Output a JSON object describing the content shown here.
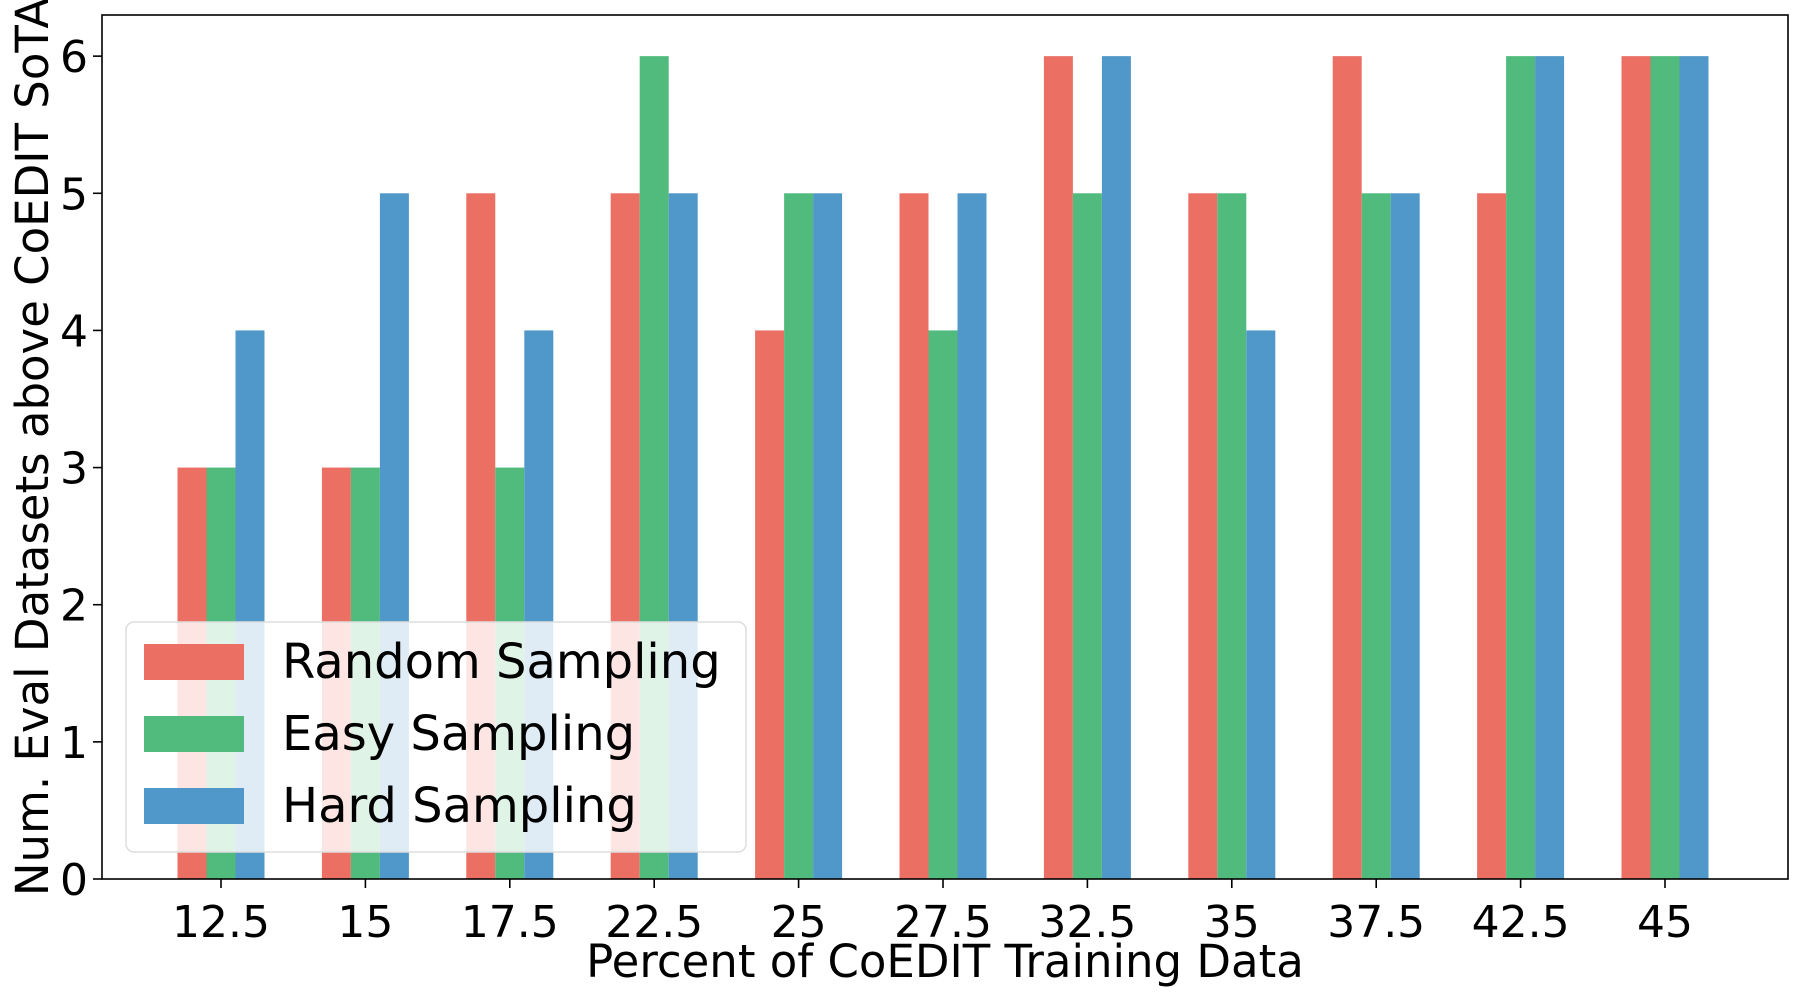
{
  "chart_data": {
    "type": "bar",
    "title": "",
    "xlabel": "Percent of CoEDIT Training Data",
    "ylabel": "Num. Eval Datasets above CoEDIT SoTA",
    "categories": [
      "12.5",
      "15",
      "17.5",
      "22.5",
      "25",
      "27.5",
      "32.5",
      "35",
      "37.5",
      "42.5",
      "45"
    ],
    "series": [
      {
        "name": "Random Sampling",
        "color": "#ec6f64",
        "values": [
          3,
          3,
          5,
          5,
          4,
          5,
          6,
          5,
          6,
          5,
          6
        ]
      },
      {
        "name": "Easy Sampling",
        "color": "#50bb7d",
        "values": [
          3,
          3,
          3,
          6,
          5,
          4,
          5,
          5,
          5,
          6,
          6
        ]
      },
      {
        "name": "Hard Sampling",
        "color": "#4f98c9",
        "values": [
          4,
          5,
          4,
          5,
          5,
          5,
          6,
          4,
          5,
          6,
          6
        ]
      }
    ],
    "ylim": [
      0,
      6.3
    ],
    "yticks": [
      "0",
      "1",
      "2",
      "3",
      "4",
      "5",
      "6"
    ],
    "legend_position": "lower-left",
    "grid": false
  }
}
